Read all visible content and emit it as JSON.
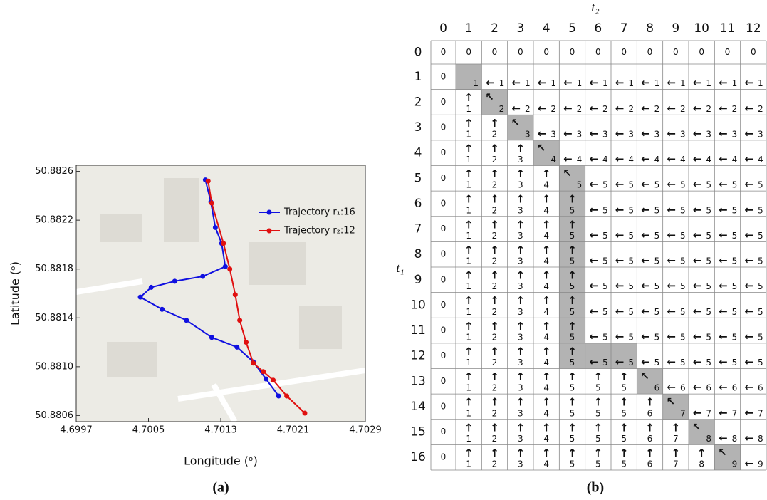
{
  "chart_data": {
    "type": "line",
    "xlabel": "Longitude (ᵒ)",
    "ylabel": "Latitude (ᵒ)",
    "caption": "(a)",
    "xlim": [
      4.6997,
      4.7029
    ],
    "ylim": [
      50.88055,
      50.88265
    ],
    "xticks": [
      4.6997,
      4.7005,
      4.7013,
      4.7021,
      4.7029
    ],
    "yticks": [
      50.8806,
      {
        "value": 50.881,
        "label": "50.8810"
      },
      50.8814,
      50.8818,
      50.8822,
      50.8826
    ],
    "legend": "upper right",
    "series": [
      {
        "name": "Trajectory r₁:16",
        "color": "#1010e0",
        "x": [
          4.70113,
          4.70119,
          4.70124,
          4.70131,
          4.70135,
          4.7011,
          4.70079,
          4.70053,
          4.70041,
          4.70065,
          4.70092,
          4.7012,
          4.70148,
          4.70166,
          4.7018,
          4.70194
        ],
        "y": [
          50.88253,
          50.88235,
          50.88214,
          50.88201,
          50.88182,
          50.88174,
          50.8817,
          50.88165,
          50.88157,
          50.88147,
          50.88138,
          50.88124,
          50.88116,
          50.88104,
          50.8809,
          50.88076
        ]
      },
      {
        "name": "Trajectory r₂:12",
        "color": "#e01010",
        "x": [
          4.70116,
          4.7012,
          4.70133,
          4.7014,
          4.70146,
          4.70151,
          4.70158,
          4.70166,
          4.70177,
          4.70188,
          4.70203,
          4.70223
        ],
        "y": [
          50.88252,
          50.88234,
          50.88201,
          50.8818,
          50.88159,
          50.88138,
          50.8812,
          50.88103,
          50.88096,
          50.88089,
          50.88076,
          50.88062
        ]
      }
    ]
  },
  "table": {
    "caption": "(b)",
    "col_title": "t₂",
    "row_title": "t₁",
    "col_headers": [
      0,
      1,
      2,
      3,
      4,
      5,
      6,
      7,
      8,
      9,
      10,
      11,
      12
    ],
    "row_headers": [
      0,
      1,
      2,
      3,
      4,
      5,
      6,
      7,
      8,
      9,
      10,
      11,
      12,
      13,
      14,
      15,
      16
    ],
    "shaded": [
      [
        1,
        1
      ],
      [
        2,
        2
      ],
      [
        3,
        3
      ],
      [
        4,
        4
      ],
      [
        5,
        5
      ],
      [
        6,
        5
      ],
      [
        7,
        5
      ],
      [
        8,
        5
      ],
      [
        9,
        5
      ],
      [
        10,
        5
      ],
      [
        11,
        5
      ],
      [
        12,
        5
      ],
      [
        12,
        6
      ],
      [
        12,
        7
      ],
      [
        13,
        8
      ],
      [
        14,
        9
      ],
      [
        15,
        10
      ],
      [
        16,
        11
      ]
    ],
    "rows": [
      [
        [
          0
        ],
        [
          0
        ],
        [
          0
        ],
        [
          0
        ],
        [
          0
        ],
        [
          0
        ],
        [
          0
        ],
        [
          0
        ],
        [
          0
        ],
        [
          0
        ],
        [
          0
        ],
        [
          0
        ],
        [
          0
        ]
      ],
      [
        [
          0
        ],
        [
          1
        ],
        [
          "←",
          1
        ],
        [
          "←",
          1
        ],
        [
          "←",
          1
        ],
        [
          "←",
          1
        ],
        [
          "←",
          1
        ],
        [
          "←",
          1
        ],
        [
          "←",
          1
        ],
        [
          "←",
          1
        ],
        [
          "←",
          1
        ],
        [
          "←",
          1
        ],
        [
          "←",
          1
        ]
      ],
      [
        [
          0
        ],
        [
          "↑",
          1
        ],
        [
          "↖",
          2
        ],
        [
          "←",
          2
        ],
        [
          "←",
          2
        ],
        [
          "←",
          2
        ],
        [
          "←",
          2
        ],
        [
          "←",
          2
        ],
        [
          "←",
          2
        ],
        [
          "←",
          2
        ],
        [
          "←",
          2
        ],
        [
          "←",
          2
        ],
        [
          "←",
          2
        ]
      ],
      [
        [
          0
        ],
        [
          "↑",
          1
        ],
        [
          "↑",
          2
        ],
        [
          "↖",
          3
        ],
        [
          "←",
          3
        ],
        [
          "←",
          3
        ],
        [
          "←",
          3
        ],
        [
          "←",
          3
        ],
        [
          "←",
          3
        ],
        [
          "←",
          3
        ],
        [
          "←",
          3
        ],
        [
          "←",
          3
        ],
        [
          "←",
          3
        ]
      ],
      [
        [
          0
        ],
        [
          "↑",
          1
        ],
        [
          "↑",
          2
        ],
        [
          "↑",
          3
        ],
        [
          "↖",
          4
        ],
        [
          "←",
          4
        ],
        [
          "←",
          4
        ],
        [
          "←",
          4
        ],
        [
          "←",
          4
        ],
        [
          "←",
          4
        ],
        [
          "←",
          4
        ],
        [
          "←",
          4
        ],
        [
          "←",
          4
        ]
      ],
      [
        [
          0
        ],
        [
          "↑",
          1
        ],
        [
          "↑",
          2
        ],
        [
          "↑",
          3
        ],
        [
          "↑",
          4
        ],
        [
          "↖",
          5
        ],
        [
          "←",
          5
        ],
        [
          "←",
          5
        ],
        [
          "←",
          5
        ],
        [
          "←",
          5
        ],
        [
          "←",
          5
        ],
        [
          "←",
          5
        ],
        [
          "←",
          5
        ]
      ],
      [
        [
          0
        ],
        [
          "↑",
          1
        ],
        [
          "↑",
          2
        ],
        [
          "↑",
          3
        ],
        [
          "↑",
          4
        ],
        [
          "↑",
          5
        ],
        [
          "←",
          5
        ],
        [
          "←",
          5
        ],
        [
          "←",
          5
        ],
        [
          "←",
          5
        ],
        [
          "←",
          5
        ],
        [
          "←",
          5
        ],
        [
          "←",
          5
        ]
      ],
      [
        [
          0
        ],
        [
          "↑",
          1
        ],
        [
          "↑",
          2
        ],
        [
          "↑",
          3
        ],
        [
          "↑",
          4
        ],
        [
          "↑",
          5
        ],
        [
          "←",
          5
        ],
        [
          "←",
          5
        ],
        [
          "←",
          5
        ],
        [
          "←",
          5
        ],
        [
          "←",
          5
        ],
        [
          "←",
          5
        ],
        [
          "←",
          5
        ]
      ],
      [
        [
          0
        ],
        [
          "↑",
          1
        ],
        [
          "↑",
          2
        ],
        [
          "↑",
          3
        ],
        [
          "↑",
          4
        ],
        [
          "↑",
          5
        ],
        [
          "←",
          5
        ],
        [
          "←",
          5
        ],
        [
          "←",
          5
        ],
        [
          "←",
          5
        ],
        [
          "←",
          5
        ],
        [
          "←",
          5
        ],
        [
          "←",
          5
        ]
      ],
      [
        [
          0
        ],
        [
          "↑",
          1
        ],
        [
          "↑",
          2
        ],
        [
          "↑",
          3
        ],
        [
          "↑",
          4
        ],
        [
          "↑",
          5
        ],
        [
          "←",
          5
        ],
        [
          "←",
          5
        ],
        [
          "←",
          5
        ],
        [
          "←",
          5
        ],
        [
          "←",
          5
        ],
        [
          "←",
          5
        ],
        [
          "←",
          5
        ]
      ],
      [
        [
          0
        ],
        [
          "↑",
          1
        ],
        [
          "↑",
          2
        ],
        [
          "↑",
          3
        ],
        [
          "↑",
          4
        ],
        [
          "↑",
          5
        ],
        [
          "←",
          5
        ],
        [
          "←",
          5
        ],
        [
          "←",
          5
        ],
        [
          "←",
          5
        ],
        [
          "←",
          5
        ],
        [
          "←",
          5
        ],
        [
          "←",
          5
        ]
      ],
      [
        [
          0
        ],
        [
          "↑",
          1
        ],
        [
          "↑",
          2
        ],
        [
          "↑",
          3
        ],
        [
          "↑",
          4
        ],
        [
          "↑",
          5
        ],
        [
          "←",
          5
        ],
        [
          "←",
          5
        ],
        [
          "←",
          5
        ],
        [
          "←",
          5
        ],
        [
          "←",
          5
        ],
        [
          "←",
          5
        ],
        [
          "←",
          5
        ]
      ],
      [
        [
          0
        ],
        [
          "↑",
          1
        ],
        [
          "↑",
          2
        ],
        [
          "↑",
          3
        ],
        [
          "↑",
          4
        ],
        [
          "↑",
          5
        ],
        [
          "←",
          5
        ],
        [
          "←",
          5
        ],
        [
          "←",
          5
        ],
        [
          "←",
          5
        ],
        [
          "←",
          5
        ],
        [
          "←",
          5
        ],
        [
          "←",
          5
        ]
      ],
      [
        [
          0
        ],
        [
          "↑",
          1
        ],
        [
          "↑",
          2
        ],
        [
          "↑",
          3
        ],
        [
          "↑",
          4
        ],
        [
          "↑",
          5
        ],
        [
          "↑",
          5
        ],
        [
          "↑",
          5
        ],
        [
          "↖",
          6
        ],
        [
          "←",
          6
        ],
        [
          "←",
          6
        ],
        [
          "←",
          6
        ],
        [
          "←",
          6
        ]
      ],
      [
        [
          0
        ],
        [
          "↑",
          1
        ],
        [
          "↑",
          2
        ],
        [
          "↑",
          3
        ],
        [
          "↑",
          4
        ],
        [
          "↑",
          5
        ],
        [
          "↑",
          5
        ],
        [
          "↑",
          5
        ],
        [
          "↑",
          6
        ],
        [
          "↖",
          7
        ],
        [
          "←",
          7
        ],
        [
          "←",
          7
        ],
        [
          "←",
          7
        ]
      ],
      [
        [
          0
        ],
        [
          "↑",
          1
        ],
        [
          "↑",
          2
        ],
        [
          "↑",
          3
        ],
        [
          "↑",
          4
        ],
        [
          "↑",
          5
        ],
        [
          "↑",
          5
        ],
        [
          "↑",
          5
        ],
        [
          "↑",
          6
        ],
        [
          "↑",
          7
        ],
        [
          "↖",
          8
        ],
        [
          "←",
          8
        ],
        [
          "←",
          8
        ]
      ],
      [
        [
          0
        ],
        [
          "↑",
          1
        ],
        [
          "↑",
          2
        ],
        [
          "↑",
          3
        ],
        [
          "↑",
          4
        ],
        [
          "↑",
          5
        ],
        [
          "↑",
          5
        ],
        [
          "↑",
          5
        ],
        [
          "↑",
          6
        ],
        [
          "↑",
          7
        ],
        [
          "↑",
          8
        ],
        [
          "↖",
          9
        ],
        [
          "←",
          9
        ]
      ]
    ]
  }
}
